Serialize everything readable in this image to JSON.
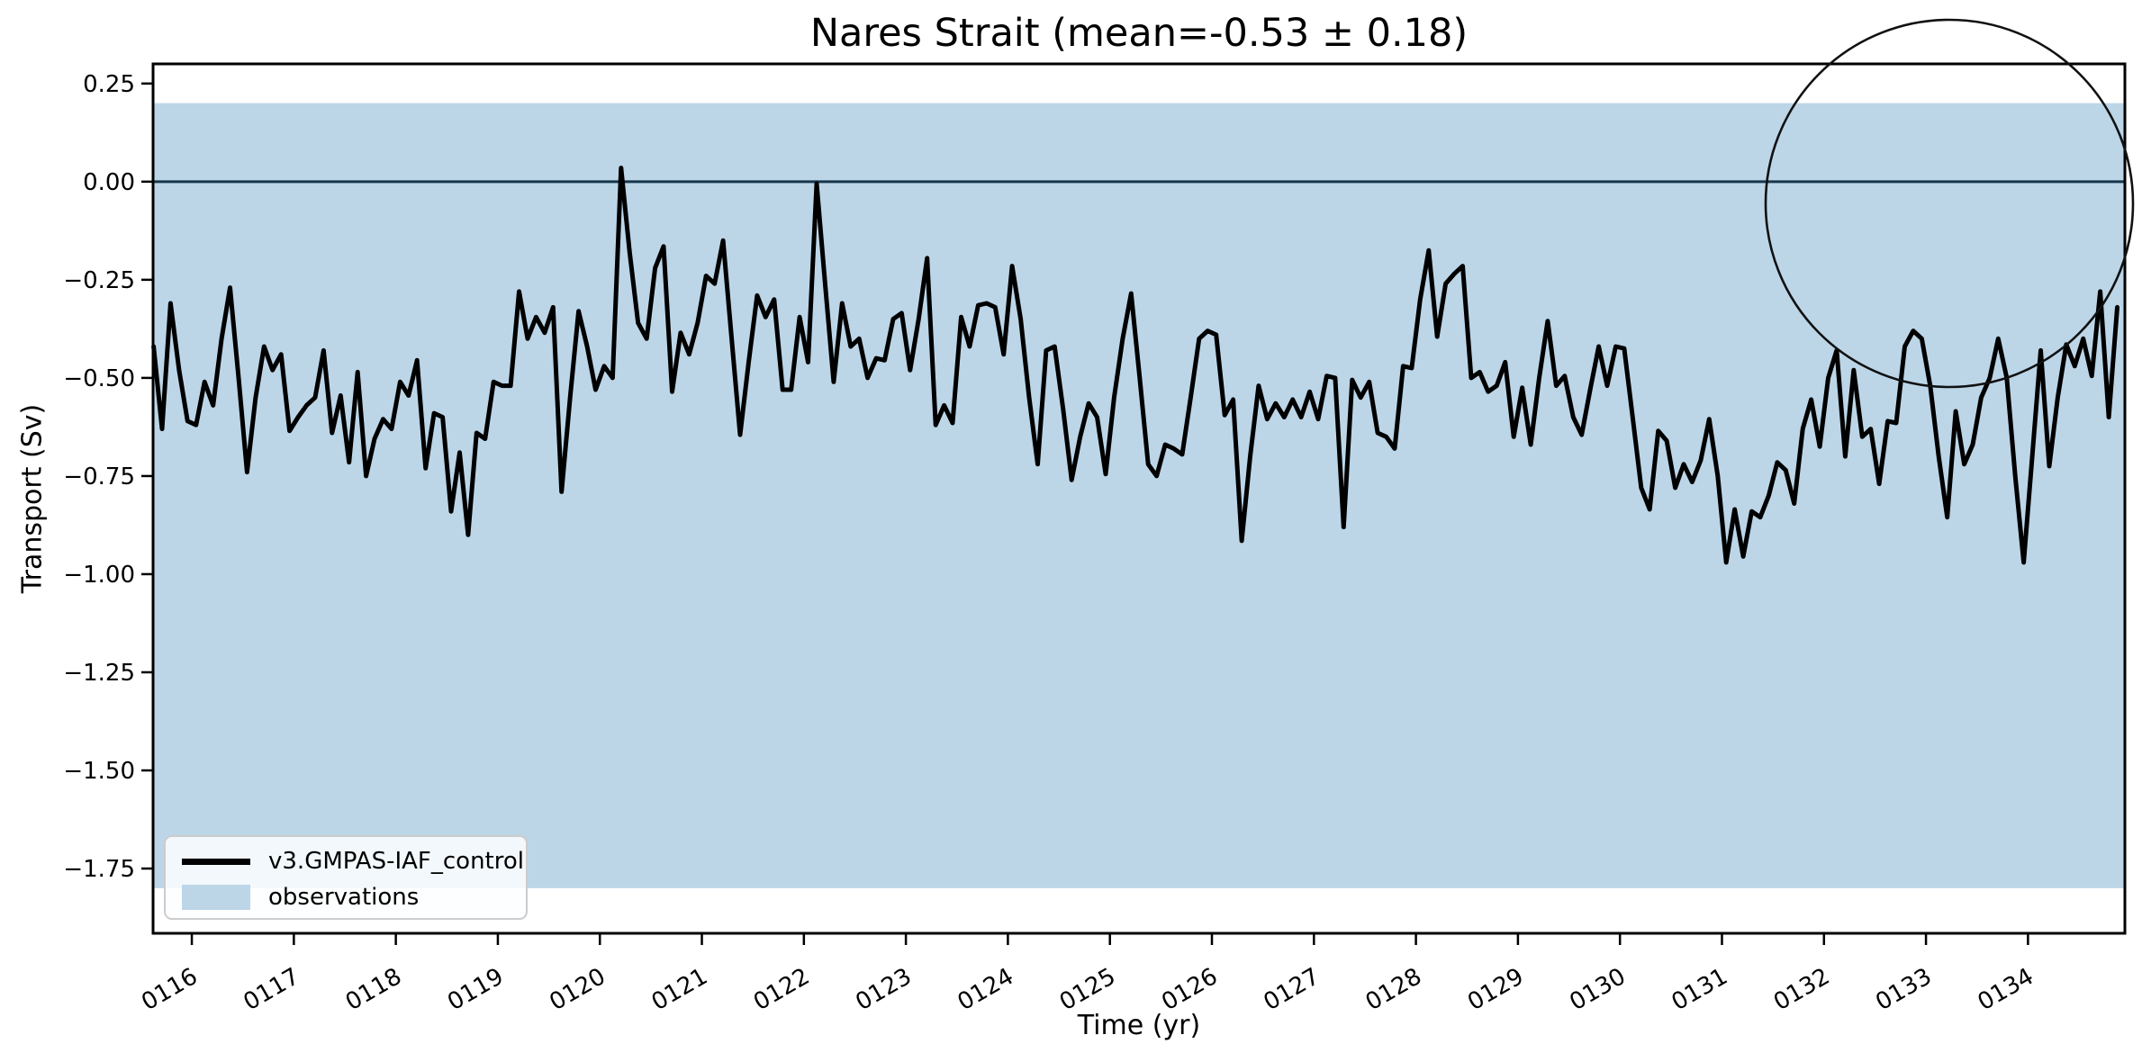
{
  "chart_data": {
    "type": "line",
    "title": "Nares Strait (mean=-0.53 ± 0.18)",
    "mean_sv": -0.53,
    "std_sv": 0.18,
    "xlabel": "Time (yr)",
    "ylabel": "Transport (Sv)",
    "xlim": [
      115.62,
      134.95
    ],
    "ylim": [
      -1.915,
      0.3
    ],
    "grid": false,
    "legend_position": "lower left",
    "xticks": {
      "values": [
        116,
        117,
        118,
        119,
        120,
        121,
        122,
        123,
        124,
        125,
        126,
        127,
        128,
        129,
        130,
        131,
        132,
        133,
        134
      ],
      "labels": [
        "0116",
        "0117",
        "0118",
        "0119",
        "0120",
        "0121",
        "0122",
        "0123",
        "0124",
        "0125",
        "0126",
        "0127",
        "0128",
        "0129",
        "0130",
        "0131",
        "0132",
        "0133",
        "0134"
      ],
      "rotation_deg": -30
    },
    "yticks": {
      "values": [
        0.25,
        0.0,
        -0.25,
        -0.5,
        -0.75,
        -1.0,
        -1.25,
        -1.5,
        -1.75
      ],
      "labels": [
        "0.25",
        "0.00",
        "−0.25",
        "−0.50",
        "−0.75",
        "−1.00",
        "−1.25",
        "−1.50",
        "−1.75"
      ]
    },
    "zero_line": {
      "value": 0.0,
      "color": "#16364d"
    },
    "observations_band": {
      "label": "observations",
      "range_sv": [
        -1.8,
        0.2
      ],
      "color": "#bcd6e8"
    },
    "series": [
      {
        "name": "v3.GMPAS-IAF_control",
        "color": "#000000",
        "line_width": 5,
        "x_start": 115.625,
        "x_step_years": 0.0833333,
        "values": [
          -0.42,
          -0.63,
          -0.31,
          -0.48,
          -0.61,
          -0.62,
          -0.51,
          -0.57,
          -0.4,
          -0.27,
          -0.5,
          -0.74,
          -0.55,
          -0.42,
          -0.48,
          -0.44,
          -0.635,
          -0.6,
          -0.57,
          -0.55,
          -0.43,
          -0.64,
          -0.545,
          -0.715,
          -0.485,
          -0.75,
          -0.655,
          -0.605,
          -0.63,
          -0.51,
          -0.545,
          -0.455,
          -0.73,
          -0.59,
          -0.6,
          -0.84,
          -0.69,
          -0.9,
          -0.64,
          -0.655,
          -0.51,
          -0.52,
          -0.52,
          -0.28,
          -0.4,
          -0.345,
          -0.385,
          -0.32,
          -0.79,
          -0.55,
          -0.33,
          -0.42,
          -0.53,
          -0.47,
          -0.5,
          0.035,
          -0.18,
          -0.36,
          -0.4,
          -0.22,
          -0.165,
          -0.535,
          -0.385,
          -0.44,
          -0.36,
          -0.24,
          -0.26,
          -0.15,
          -0.4,
          -0.645,
          -0.46,
          -0.29,
          -0.345,
          -0.3,
          -0.53,
          -0.53,
          -0.345,
          -0.46,
          -0.005,
          -0.26,
          -0.51,
          -0.31,
          -0.42,
          -0.4,
          -0.5,
          -0.45,
          -0.455,
          -0.35,
          -0.335,
          -0.48,
          -0.35,
          -0.195,
          -0.62,
          -0.57,
          -0.615,
          -0.345,
          -0.42,
          -0.315,
          -0.31,
          -0.32,
          -0.44,
          -0.215,
          -0.35,
          -0.55,
          -0.72,
          -0.43,
          -0.42,
          -0.58,
          -0.76,
          -0.65,
          -0.565,
          -0.6,
          -0.745,
          -0.55,
          -0.4,
          -0.285,
          -0.5,
          -0.72,
          -0.75,
          -0.67,
          -0.68,
          -0.695,
          -0.55,
          -0.4,
          -0.38,
          -0.39,
          -0.595,
          -0.555,
          -0.915,
          -0.7,
          -0.52,
          -0.605,
          -0.565,
          -0.6,
          -0.555,
          -0.6,
          -0.535,
          -0.605,
          -0.495,
          -0.5,
          -0.88,
          -0.505,
          -0.55,
          -0.51,
          -0.64,
          -0.65,
          -0.68,
          -0.47,
          -0.475,
          -0.3,
          -0.175,
          -0.395,
          -0.26,
          -0.235,
          -0.215,
          -0.5,
          -0.485,
          -0.535,
          -0.52,
          -0.46,
          -0.65,
          -0.525,
          -0.67,
          -0.5,
          -0.355,
          -0.52,
          -0.495,
          -0.6,
          -0.645,
          -0.53,
          -0.42,
          -0.52,
          -0.42,
          -0.425,
          -0.6,
          -0.78,
          -0.835,
          -0.635,
          -0.66,
          -0.78,
          -0.72,
          -0.765,
          -0.71,
          -0.605,
          -0.75,
          -0.97,
          -0.835,
          -0.955,
          -0.84,
          -0.855,
          -0.8,
          -0.715,
          -0.735,
          -0.82,
          -0.63,
          -0.555,
          -0.675,
          -0.5,
          -0.43,
          -0.7,
          -0.48,
          -0.65,
          -0.63,
          -0.77,
          -0.61,
          -0.615,
          -0.42,
          -0.38,
          -0.4,
          -0.52,
          -0.7,
          -0.855,
          -0.585,
          -0.72,
          -0.67,
          -0.55,
          -0.5,
          -0.4,
          -0.5,
          -0.75,
          -0.97,
          -0.7,
          -0.43,
          -0.725,
          -0.55,
          -0.415,
          -0.47,
          -0.4,
          -0.495,
          -0.28,
          -0.6,
          -0.32
        ]
      }
    ],
    "inset_map": {
      "projection": "north-polar-stereographic",
      "ocean_color": "#8fadde",
      "land_color": "#f0eddc",
      "graticule_color": "#8a8a8a",
      "marker_green": "#1e9b27",
      "marker_red": "#e8211a"
    }
  },
  "legend": {
    "series_label": "v3.GMPAS-IAF_control",
    "band_label": "observations"
  }
}
